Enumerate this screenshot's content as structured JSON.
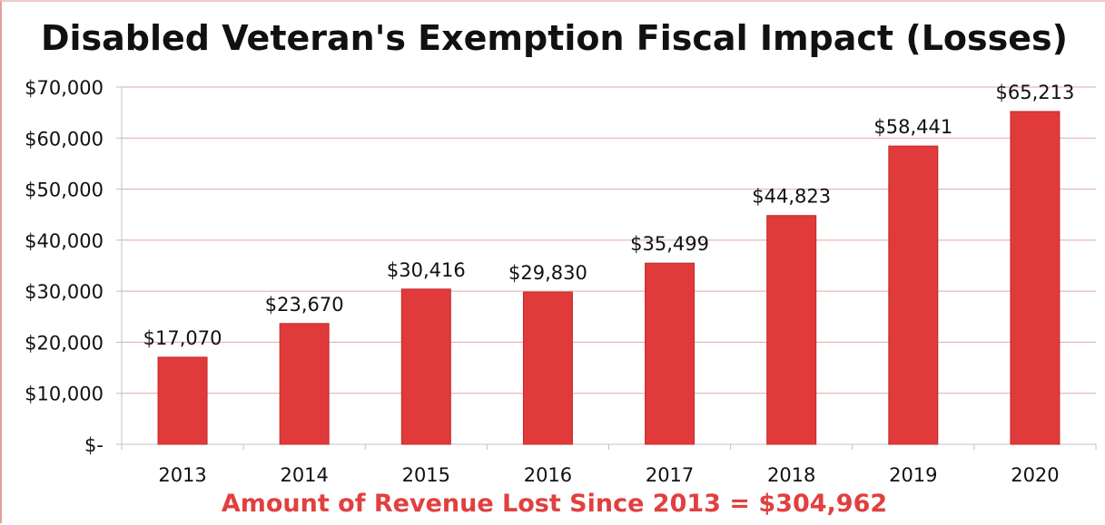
{
  "chart_data": {
    "type": "bar",
    "title": "Disabled Veteran's Exemption Fiscal Impact (Losses)",
    "categories": [
      "2013",
      "2014",
      "2015",
      "2016",
      "2017",
      "2018",
      "2019",
      "2020"
    ],
    "values": [
      17070,
      23670,
      30416,
      29830,
      35499,
      44823,
      58441,
      65213
    ],
    "data_labels": [
      "$17,070",
      "$23,670",
      "$30,416",
      "$29,830",
      "$35,499",
      "$44,823",
      "$58,441",
      "$65,213"
    ],
    "y_ticks": [
      0,
      10000,
      20000,
      30000,
      40000,
      50000,
      60000,
      70000
    ],
    "y_tick_labels": [
      "$-",
      "$10,000",
      "$20,000",
      "$30,000",
      "$40,000",
      "$50,000",
      "$60,000",
      "$70,000"
    ],
    "ylim": [
      0,
      70000
    ],
    "grid": true,
    "legend": "none",
    "summary": "Amount of Revenue Lost Since 2013 = $304,962",
    "colors": {
      "bar": "#e03a3a",
      "bar_edge": "#c42a2a",
      "grid": "#e0a8a8",
      "axis": "#c0c0c0",
      "summary_text": "#e0403f"
    }
  }
}
